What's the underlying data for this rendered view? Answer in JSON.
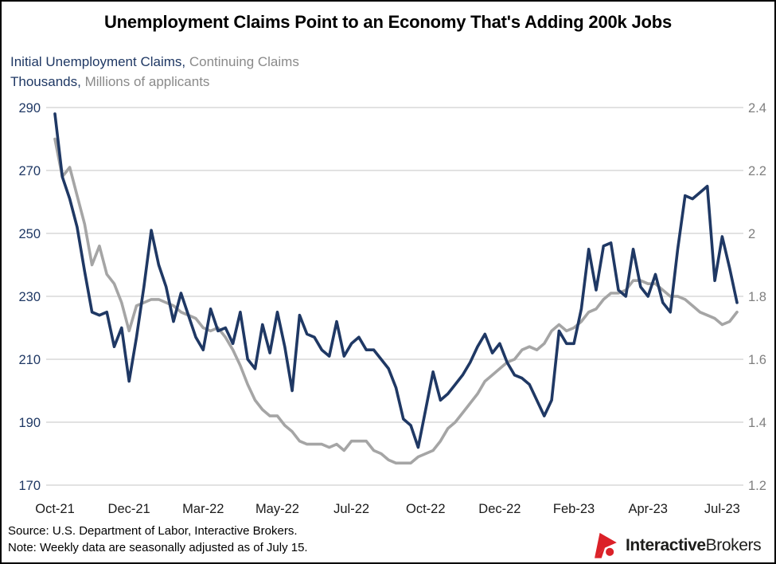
{
  "title": "Unemployment Claims Point to an Economy That's Adding 200k Jobs",
  "legend": {
    "series1_label": "Initial Unemployment Claims,",
    "series2_label": "Continuing Claims",
    "units1_label": "Thousands,",
    "units2_label": "Millions of applicants"
  },
  "footer": {
    "source": "Source: U.S. Department of Labor, Interactive Brokers.",
    "note": "Note: Weekly data are seasonally adjusted as of July 15."
  },
  "logo": {
    "bold": "Interactive",
    "regular": "Brokers",
    "brand_red": "#DB2128",
    "text_color": "#1d1d1b"
  },
  "chart_data": {
    "type": "line",
    "title": "Unemployment Claims Point to an Economy That's Adding 200k Jobs",
    "x_unit": "week (Oct-2021 through Jul-15-2023, weekly data)",
    "n_points": 93,
    "grid": true,
    "legend_position": "top-left",
    "grid_color": "#D9D9D9",
    "x_tick_color": "#1a1a1a",
    "x_ticks": [
      {
        "label": "Oct-21",
        "week": 0
      },
      {
        "label": "Dec-21",
        "week": 10
      },
      {
        "label": "Mar-22",
        "week": 20
      },
      {
        "label": "May-22",
        "week": 30
      },
      {
        "label": "Jul-22",
        "week": 40
      },
      {
        "label": "Oct-22",
        "week": 50
      },
      {
        "label": "Dec-22",
        "week": 60
      },
      {
        "label": "Feb-23",
        "week": 70
      },
      {
        "label": "Apr-23",
        "week": 80
      },
      {
        "label": "Jul-23",
        "week": 90
      }
    ],
    "left_axis": {
      "label": "Initial Unemployment Claims, Thousands",
      "min": 170,
      "max": 290,
      "ticks": [
        290,
        270,
        250,
        230,
        210,
        190,
        170
      ],
      "label_color": "#1F3864"
    },
    "right_axis": {
      "label": "Continuing Claims, Millions of applicants",
      "min": 1.2,
      "max": 2.4,
      "tick_labels": [
        "2.4",
        "2.2",
        "2",
        "1.8",
        "1.6",
        "1.4",
        "1.2"
      ],
      "label_color": "#7F7F7F"
    },
    "series": [
      {
        "name": "Initial Unemployment Claims",
        "axis": "left",
        "color": "#1F3864",
        "values": [
          288,
          268,
          261,
          252,
          238,
          225,
          224,
          225,
          214,
          220,
          203,
          217,
          233,
          251,
          240,
          233,
          222,
          231,
          224,
          217,
          213,
          226,
          219,
          220,
          215,
          225,
          210,
          207,
          221,
          212,
          225,
          214,
          200,
          224,
          218,
          217,
          213,
          211,
          222,
          211,
          215,
          217,
          213,
          213,
          210,
          207,
          201,
          191,
          189,
          182,
          194,
          206,
          197,
          199,
          202,
          205,
          209,
          214,
          218,
          212,
          215,
          209,
          205,
          204,
          202,
          197,
          192,
          197,
          219,
          215,
          215,
          226,
          245,
          232,
          246,
          247,
          232,
          230,
          245,
          233,
          230,
          237,
          228,
          225,
          245,
          262,
          261,
          263,
          265,
          235,
          249,
          239,
          228
        ]
      },
      {
        "name": "Continuing Claims",
        "axis": "right",
        "color": "#A5A5A5",
        "values": [
          2.3,
          2.18,
          2.21,
          2.12,
          2.03,
          1.9,
          1.96,
          1.87,
          1.84,
          1.78,
          1.69,
          1.77,
          1.78,
          1.79,
          1.79,
          1.78,
          1.77,
          1.75,
          1.74,
          1.73,
          1.7,
          1.69,
          1.7,
          1.67,
          1.63,
          1.58,
          1.52,
          1.47,
          1.44,
          1.42,
          1.42,
          1.39,
          1.37,
          1.34,
          1.33,
          1.33,
          1.33,
          1.32,
          1.33,
          1.31,
          1.34,
          1.34,
          1.34,
          1.31,
          1.3,
          1.28,
          1.27,
          1.27,
          1.27,
          1.29,
          1.3,
          1.31,
          1.34,
          1.38,
          1.4,
          1.43,
          1.46,
          1.49,
          1.53,
          1.55,
          1.57,
          1.59,
          1.6,
          1.63,
          1.64,
          1.63,
          1.65,
          1.69,
          1.71,
          1.69,
          1.7,
          1.72,
          1.75,
          1.76,
          1.79,
          1.81,
          1.81,
          1.82,
          1.85,
          1.85,
          1.84,
          1.84,
          1.82,
          1.8,
          1.8,
          1.79,
          1.77,
          1.75,
          1.74,
          1.73,
          1.71,
          1.72,
          1.75
        ]
      }
    ]
  }
}
